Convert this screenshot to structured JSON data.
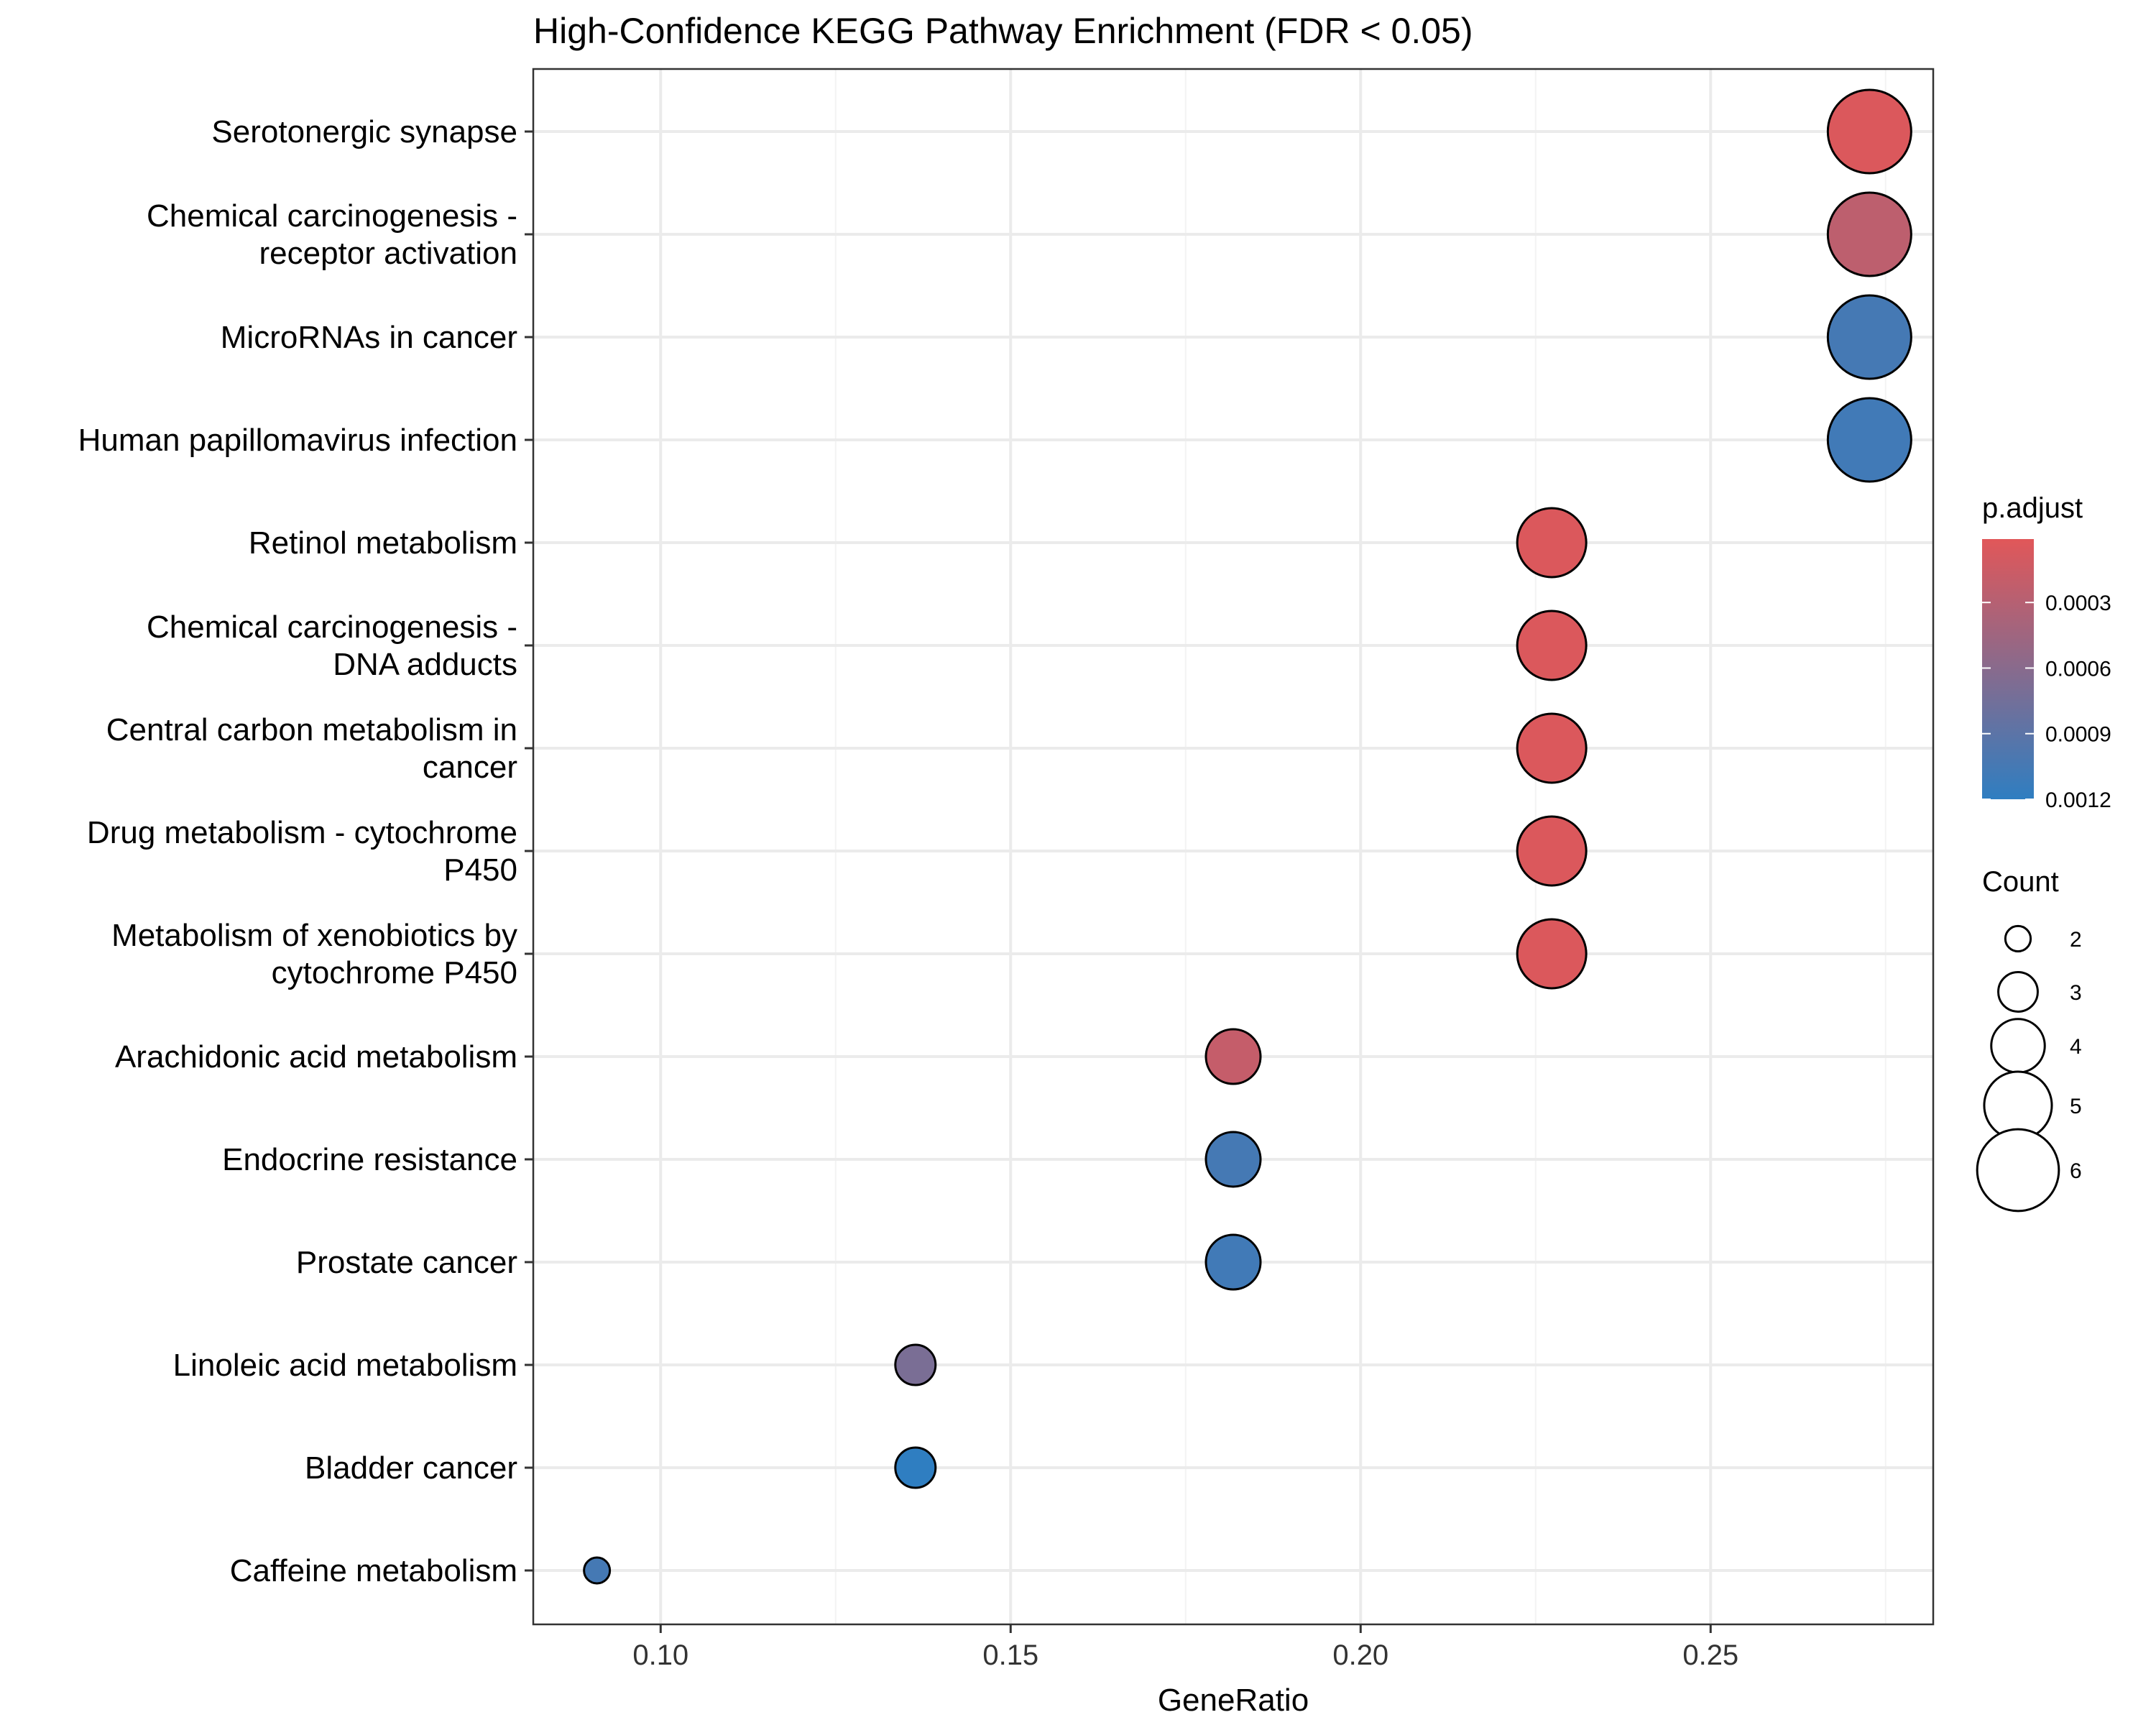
{
  "chart_data": {
    "type": "scatter",
    "title": "High-Confidence KEGG Pathway Enrichment (FDR < 0.05)",
    "xlabel": "GeneRatio",
    "ylabel": "",
    "xlim": [
      0.0818,
      0.2818
    ],
    "x_ticks": [
      0.1,
      0.15,
      0.2,
      0.25
    ],
    "x_tick_labels": [
      "0.10",
      "0.15",
      "0.20",
      "0.25"
    ],
    "grid": true,
    "categories": [
      "Serotonergic synapse",
      "Chemical carcinogenesis -\nreceptor activation",
      "MicroRNAs in cancer",
      "Human papillomavirus infection",
      "Retinol metabolism",
      "Chemical carcinogenesis -\nDNA adducts",
      "Central carbon metabolism in\ncancer",
      "Drug metabolism - cytochrome\nP450",
      "Metabolism of xenobiotics by\ncytochrome P450",
      "Arachidonic acid metabolism",
      "Endocrine resistance",
      "Prostate cancer",
      "Linoleic acid metabolism",
      "Bladder cancer",
      "Caffeine metabolism"
    ],
    "points": [
      {
        "x": 0.2727,
        "count": 6,
        "p_adjust": 5e-05
      },
      {
        "x": 0.2727,
        "count": 6,
        "p_adjust": 0.00025
      },
      {
        "x": 0.2727,
        "count": 6,
        "p_adjust": 0.00105
      },
      {
        "x": 0.2727,
        "count": 6,
        "p_adjust": 0.00108
      },
      {
        "x": 0.2273,
        "count": 5,
        "p_adjust": 5e-05
      },
      {
        "x": 0.2273,
        "count": 5,
        "p_adjust": 5e-05
      },
      {
        "x": 0.2273,
        "count": 5,
        "p_adjust": 5e-05
      },
      {
        "x": 0.2273,
        "count": 5,
        "p_adjust": 5e-05
      },
      {
        "x": 0.2273,
        "count": 5,
        "p_adjust": 5e-05
      },
      {
        "x": 0.1818,
        "count": 4,
        "p_adjust": 0.0002
      },
      {
        "x": 0.1818,
        "count": 4,
        "p_adjust": 0.00105
      },
      {
        "x": 0.1818,
        "count": 4,
        "p_adjust": 0.00108
      },
      {
        "x": 0.1364,
        "count": 3,
        "p_adjust": 0.0007
      },
      {
        "x": 0.1364,
        "count": 3,
        "p_adjust": 0.0012
      },
      {
        "x": 0.0909,
        "count": 2,
        "p_adjust": 0.00105
      }
    ],
    "legend": {
      "placement": "right",
      "color": {
        "title": "p.adjust",
        "low_color": "#e15759",
        "high_color": "#2f7ec1",
        "range": [
          1e-05,
          0.0012
        ],
        "ticks": [
          0.0003,
          0.0006,
          0.0009,
          0.0012
        ],
        "tick_labels": [
          "0.0003",
          "0.0006",
          "0.0009",
          "0.0012"
        ]
      },
      "size": {
        "title": "Count",
        "values": [
          2,
          3,
          4,
          5,
          6
        ],
        "labels": [
          "2",
          "3",
          "4",
          "5",
          "6"
        ]
      }
    }
  }
}
